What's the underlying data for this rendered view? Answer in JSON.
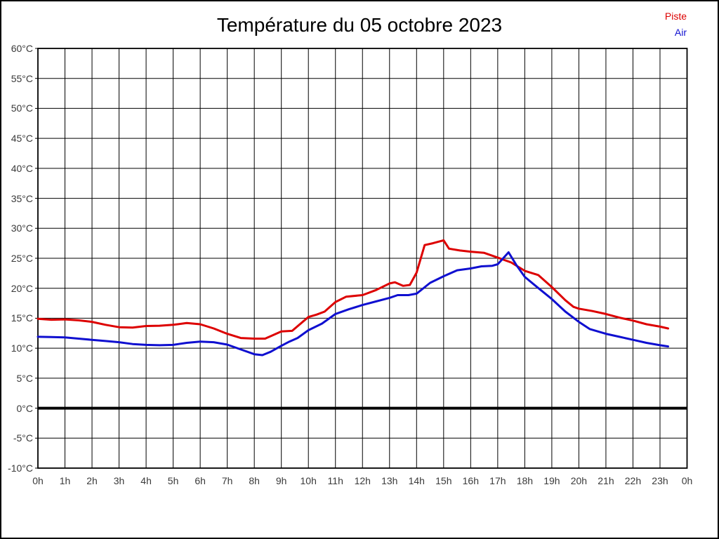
{
  "title": "Température du 05 octobre 2023",
  "legend": {
    "piste_label": "Piste",
    "air_label": "Air"
  },
  "colors": {
    "piste": "#dd0000",
    "air": "#0f0fd0",
    "grid": "#000000",
    "zero_line": "#000000",
    "tick_text": "#3a3a3a"
  },
  "chart_data": {
    "type": "line",
    "title": "Température du 05 octobre 2023",
    "xlabel": "",
    "ylabel": "",
    "x_axis": {
      "range": [
        0,
        24
      ],
      "tick_labels": [
        "0h",
        "1h",
        "2h",
        "3h",
        "4h",
        "5h",
        "6h",
        "7h",
        "8h",
        "9h",
        "10h",
        "11h",
        "12h",
        "13h",
        "14h",
        "15h",
        "16h",
        "17h",
        "18h",
        "19h",
        "20h",
        "21h",
        "22h",
        "23h",
        "0h"
      ]
    },
    "y_axis": {
      "range": [
        -10,
        60
      ],
      "tick_step": 5,
      "tick_labels": [
        "60°C",
        "55°C",
        "50°C",
        "45°C",
        "40°C",
        "35°C",
        "30°C",
        "25°C",
        "20°C",
        "15°C",
        "10°C",
        "5°C",
        "0°C",
        "-5°C",
        "-10°C"
      ]
    },
    "grid": true,
    "zero_line_thick": true,
    "legend_position": "top-right",
    "series": [
      {
        "name": "Piste",
        "color": "#dd0000",
        "points": [
          [
            0,
            14.9
          ],
          [
            0.5,
            14.75
          ],
          [
            1,
            14.8
          ],
          [
            1.5,
            14.65
          ],
          [
            2,
            14.4
          ],
          [
            2.5,
            13.9
          ],
          [
            3,
            13.5
          ],
          [
            3.5,
            13.45
          ],
          [
            4,
            13.7
          ],
          [
            4.5,
            13.75
          ],
          [
            5,
            13.9
          ],
          [
            5.5,
            14.2
          ],
          [
            6,
            14.0
          ],
          [
            6.5,
            13.3
          ],
          [
            7,
            12.4
          ],
          [
            7.5,
            11.7
          ],
          [
            8,
            11.6
          ],
          [
            8.4,
            11.6
          ],
          [
            9,
            12.8
          ],
          [
            9.4,
            12.9
          ],
          [
            10,
            15.2
          ],
          [
            10.3,
            15.6
          ],
          [
            10.6,
            16.1
          ],
          [
            11,
            17.7
          ],
          [
            11.4,
            18.6
          ],
          [
            12,
            18.85
          ],
          [
            12.5,
            19.7
          ],
          [
            13,
            20.8
          ],
          [
            13.2,
            21.0
          ],
          [
            13.5,
            20.4
          ],
          [
            13.75,
            20.55
          ],
          [
            14,
            22.6
          ],
          [
            14.3,
            27.2
          ],
          [
            14.6,
            27.5
          ],
          [
            15,
            28.0
          ],
          [
            15.2,
            26.6
          ],
          [
            15.6,
            26.3
          ],
          [
            16,
            26.1
          ],
          [
            16.5,
            25.9
          ],
          [
            17,
            25.1
          ],
          [
            17.5,
            24.3
          ],
          [
            18,
            22.9
          ],
          [
            18.5,
            22.2
          ],
          [
            19,
            20.2
          ],
          [
            19.5,
            18.0
          ],
          [
            19.8,
            16.9
          ],
          [
            20,
            16.6
          ],
          [
            20.5,
            16.2
          ],
          [
            21,
            15.7
          ],
          [
            21.5,
            15.1
          ],
          [
            22,
            14.6
          ],
          [
            22.5,
            14.0
          ],
          [
            23,
            13.6
          ],
          [
            23.3,
            13.3
          ]
        ]
      },
      {
        "name": "Air",
        "color": "#0f0fd0",
        "points": [
          [
            0,
            11.9
          ],
          [
            0.5,
            11.85
          ],
          [
            1,
            11.8
          ],
          [
            1.5,
            11.6
          ],
          [
            2,
            11.4
          ],
          [
            2.5,
            11.2
          ],
          [
            3,
            11.0
          ],
          [
            3.5,
            10.7
          ],
          [
            4,
            10.55
          ],
          [
            4.5,
            10.5
          ],
          [
            5,
            10.55
          ],
          [
            5.5,
            10.9
          ],
          [
            6,
            11.1
          ],
          [
            6.5,
            11.0
          ],
          [
            7,
            10.6
          ],
          [
            7.5,
            9.8
          ],
          [
            8,
            9.0
          ],
          [
            8.3,
            8.85
          ],
          [
            8.6,
            9.4
          ],
          [
            9,
            10.4
          ],
          [
            9.3,
            11.1
          ],
          [
            9.6,
            11.7
          ],
          [
            10,
            13.0
          ],
          [
            10.5,
            14.1
          ],
          [
            11,
            15.7
          ],
          [
            11.5,
            16.5
          ],
          [
            12,
            17.2
          ],
          [
            12.5,
            17.8
          ],
          [
            13,
            18.4
          ],
          [
            13.3,
            18.85
          ],
          [
            13.7,
            18.85
          ],
          [
            14,
            19.1
          ],
          [
            14.5,
            20.9
          ],
          [
            15,
            22.0
          ],
          [
            15.5,
            23.0
          ],
          [
            16,
            23.3
          ],
          [
            16.4,
            23.65
          ],
          [
            16.8,
            23.75
          ],
          [
            17,
            24.0
          ],
          [
            17.4,
            26.0
          ],
          [
            17.7,
            23.8
          ],
          [
            18,
            21.9
          ],
          [
            18.4,
            20.4
          ],
          [
            19,
            18.2
          ],
          [
            19.5,
            16.1
          ],
          [
            20,
            14.4
          ],
          [
            20.4,
            13.2
          ],
          [
            21,
            12.4
          ],
          [
            21.5,
            11.9
          ],
          [
            22,
            11.4
          ],
          [
            22.5,
            10.9
          ],
          [
            23,
            10.5
          ],
          [
            23.3,
            10.3
          ]
        ]
      }
    ]
  }
}
